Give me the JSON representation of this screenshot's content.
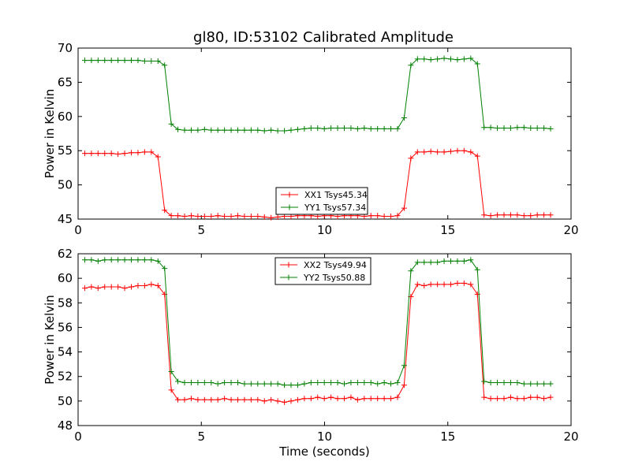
{
  "title": "gl80, ID:53102 Calibrated Amplitude",
  "colors": {
    "red": "#ff0000",
    "green": "#008000",
    "frame": "#000000",
    "background": "#ffffff"
  },
  "chart_data": [
    {
      "type": "line",
      "title": "gl80, ID:53102 Calibrated Amplitude",
      "xlabel": "",
      "ylabel": "Power in Kelvin",
      "xlim": [
        0,
        20
      ],
      "ylim": [
        45,
        70
      ],
      "xticks": [
        "0",
        "5",
        "10",
        "15",
        "20"
      ],
      "yticks": [
        "45",
        "50",
        "55",
        "60",
        "65",
        "70"
      ],
      "grid": false,
      "legend_position": "lower-center",
      "marker": "+",
      "x": [
        0.27,
        0.54,
        0.81,
        1.08,
        1.35,
        1.62,
        1.89,
        2.16,
        2.43,
        2.7,
        2.97,
        3.24,
        3.51,
        3.78,
        4.05,
        4.32,
        4.59,
        4.86,
        5.13,
        5.4,
        5.67,
        5.94,
        6.21,
        6.48,
        6.75,
        7.02,
        7.29,
        7.56,
        7.83,
        8.1,
        8.37,
        8.64,
        8.91,
        9.18,
        9.45,
        9.72,
        9.99,
        10.26,
        10.53,
        10.8,
        11.07,
        11.34,
        11.61,
        11.88,
        12.15,
        12.42,
        12.69,
        12.96,
        13.23,
        13.5,
        13.77,
        14.04,
        14.31,
        14.58,
        14.85,
        15.12,
        15.39,
        15.66,
        15.93,
        16.2,
        16.47,
        16.74,
        17.01,
        17.28,
        17.55,
        17.82,
        18.09,
        18.36,
        18.63,
        18.9,
        19.17
      ],
      "series": [
        {
          "name": "XX1 Tsys45.34",
          "color": "#ff0000",
          "values": [
            54.6,
            54.6,
            54.6,
            54.6,
            54.6,
            54.5,
            54.6,
            54.7,
            54.7,
            54.8,
            54.8,
            54.1,
            46.3,
            45.5,
            45.5,
            45.4,
            45.5,
            45.4,
            45.4,
            45.4,
            45.5,
            45.4,
            45.4,
            45.5,
            45.4,
            45.4,
            45.4,
            45.3,
            45.2,
            45.3,
            45.4,
            45.4,
            45.5,
            45.5,
            45.5,
            45.4,
            45.5,
            45.5,
            45.4,
            45.5,
            45.5,
            45.5,
            45.4,
            45.5,
            45.5,
            45.4,
            45.4,
            45.5,
            46.6,
            53.9,
            54.8,
            54.8,
            54.9,
            54.8,
            54.8,
            54.9,
            55.0,
            55.0,
            54.8,
            54.2,
            45.6,
            45.5,
            45.6,
            45.6,
            45.6,
            45.6,
            45.5,
            45.5,
            45.6,
            45.6,
            45.6
          ]
        },
        {
          "name": "YY1 Tsys57.34",
          "color": "#008000",
          "values": [
            68.2,
            68.2,
            68.2,
            68.2,
            68.2,
            68.2,
            68.2,
            68.2,
            68.2,
            68.1,
            68.1,
            68.1,
            67.5,
            58.9,
            58.1,
            58.0,
            58.0,
            58.0,
            58.1,
            58.0,
            58.0,
            58.0,
            58.0,
            58.0,
            58.0,
            58.0,
            58.0,
            57.9,
            58.0,
            57.9,
            57.9,
            58.0,
            58.1,
            58.2,
            58.3,
            58.3,
            58.2,
            58.3,
            58.3,
            58.3,
            58.3,
            58.2,
            58.3,
            58.2,
            58.2,
            58.2,
            58.2,
            58.2,
            59.8,
            67.5,
            68.4,
            68.4,
            68.3,
            68.4,
            68.5,
            68.4,
            68.3,
            68.4,
            68.5,
            67.7,
            58.4,
            58.4,
            58.3,
            58.3,
            58.3,
            58.4,
            58.4,
            58.3,
            58.3,
            58.3,
            58.2
          ]
        }
      ]
    },
    {
      "type": "line",
      "title": "",
      "xlabel": "Time (seconds)",
      "ylabel": "Power in Kelvin",
      "xlim": [
        0,
        20
      ],
      "ylim": [
        48,
        62
      ],
      "xticks": [
        "0",
        "5",
        "10",
        "15",
        "20"
      ],
      "yticks": [
        "48",
        "50",
        "52",
        "54",
        "56",
        "58",
        "60",
        "62"
      ],
      "grid": false,
      "legend_position": "upper-center",
      "marker": "+",
      "x": [
        0.27,
        0.54,
        0.81,
        1.08,
        1.35,
        1.62,
        1.89,
        2.16,
        2.43,
        2.7,
        2.97,
        3.24,
        3.51,
        3.78,
        4.05,
        4.32,
        4.59,
        4.86,
        5.13,
        5.4,
        5.67,
        5.94,
        6.21,
        6.48,
        6.75,
        7.02,
        7.29,
        7.56,
        7.83,
        8.1,
        8.37,
        8.64,
        8.91,
        9.18,
        9.45,
        9.72,
        9.99,
        10.26,
        10.53,
        10.8,
        11.07,
        11.34,
        11.61,
        11.88,
        12.15,
        12.42,
        12.69,
        12.96,
        13.23,
        13.5,
        13.77,
        14.04,
        14.31,
        14.58,
        14.85,
        15.12,
        15.39,
        15.66,
        15.93,
        16.2,
        16.47,
        16.74,
        17.01,
        17.28,
        17.55,
        17.82,
        18.09,
        18.36,
        18.63,
        18.9,
        19.17
      ],
      "series": [
        {
          "name": "XX2 Tsys49.94",
          "color": "#ff0000",
          "values": [
            59.2,
            59.3,
            59.2,
            59.3,
            59.3,
            59.3,
            59.2,
            59.3,
            59.4,
            59.4,
            59.5,
            59.4,
            58.7,
            50.9,
            50.1,
            50.1,
            50.2,
            50.1,
            50.1,
            50.1,
            50.1,
            50.2,
            50.1,
            50.1,
            50.1,
            50.1,
            50.1,
            50.0,
            50.1,
            50.0,
            49.9,
            50.0,
            50.1,
            50.2,
            50.2,
            50.3,
            50.2,
            50.3,
            50.2,
            50.2,
            50.3,
            50.1,
            50.2,
            50.2,
            50.2,
            50.2,
            50.2,
            50.3,
            51.3,
            58.5,
            59.5,
            59.4,
            59.5,
            59.5,
            59.5,
            59.5,
            59.6,
            59.6,
            59.5,
            58.7,
            50.3,
            50.2,
            50.2,
            50.2,
            50.3,
            50.2,
            50.2,
            50.3,
            50.3,
            50.2,
            50.3
          ]
        },
        {
          "name": "YY2 Tsys50.88",
          "color": "#008000",
          "values": [
            61.5,
            61.5,
            61.4,
            61.5,
            61.5,
            61.5,
            61.5,
            61.5,
            61.5,
            61.5,
            61.5,
            61.4,
            60.8,
            52.4,
            51.6,
            51.5,
            51.5,
            51.5,
            51.5,
            51.5,
            51.4,
            51.5,
            51.5,
            51.5,
            51.4,
            51.4,
            51.4,
            51.4,
            51.4,
            51.4,
            51.3,
            51.3,
            51.3,
            51.4,
            51.5,
            51.5,
            51.5,
            51.5,
            51.5,
            51.4,
            51.5,
            51.5,
            51.5,
            51.5,
            51.4,
            51.5,
            51.4,
            51.5,
            52.9,
            60.6,
            61.3,
            61.3,
            61.3,
            61.3,
            61.4,
            61.4,
            61.4,
            61.4,
            61.5,
            60.7,
            51.6,
            51.5,
            51.5,
            51.5,
            51.5,
            51.5,
            51.4,
            51.4,
            51.4,
            51.4,
            51.4
          ]
        }
      ]
    }
  ]
}
